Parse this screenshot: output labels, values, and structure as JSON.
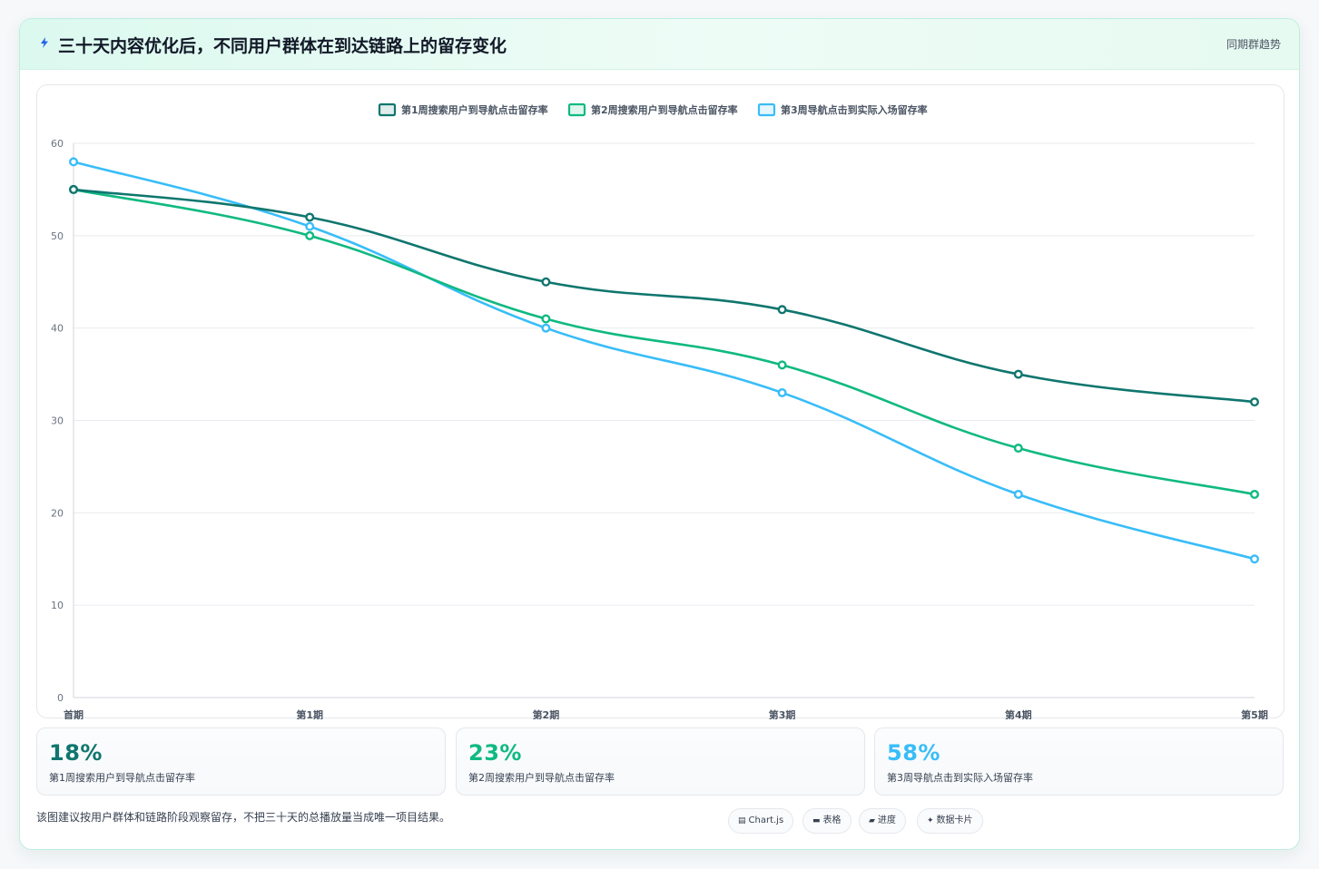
{
  "header": {
    "title": "三十天内容优化后，不同用户群体在到达链路上的留存变化",
    "tag": "同期群趋势"
  },
  "chart_data": {
    "type": "line",
    "categories": [
      "首期",
      "第1期",
      "第2期",
      "第3期",
      "第4期",
      "第5期"
    ],
    "series": [
      {
        "name": "第1周搜索用户到导航点击留存率",
        "color": "#0f766e",
        "values": [
          55,
          52,
          45,
          42,
          35,
          32
        ]
      },
      {
        "name": "第2周搜索用户到导航点击留存率",
        "color": "#10b981",
        "values": [
          55,
          50,
          41,
          36,
          27,
          22
        ]
      },
      {
        "name": "第3周导航点击到实际入场留存率",
        "color": "#38bdf8",
        "values": [
          58,
          51,
          40,
          33,
          22,
          15
        ]
      }
    ],
    "ylim": [
      0,
      60
    ],
    "yticks": [
      0,
      10,
      20,
      30,
      40,
      50,
      60
    ],
    "grid": true,
    "legend": "top-center"
  },
  "kpis": [
    {
      "value": "18%",
      "label": "第1周搜索用户到导航点击留存率",
      "color": "#0f766e"
    },
    {
      "value": "23%",
      "label": "第2周搜索用户到导航点击留存率",
      "color": "#10b981"
    },
    {
      "value": "58%",
      "label": "第3周导航点击到实际入场留存率",
      "color": "#38bdf8"
    }
  ],
  "footer": {
    "note": "该图建议按用户群体和链路阶段观察留存，不把三十天的总播放量当成唯一项目结果。",
    "pills": [
      {
        "icon": "chart-icon",
        "label": "Chart.js"
      },
      {
        "icon": "table-icon",
        "label": "表格"
      },
      {
        "icon": "progress-icon",
        "label": "进度"
      },
      {
        "icon": "sparkle-icon",
        "label": "数据卡片"
      }
    ]
  }
}
